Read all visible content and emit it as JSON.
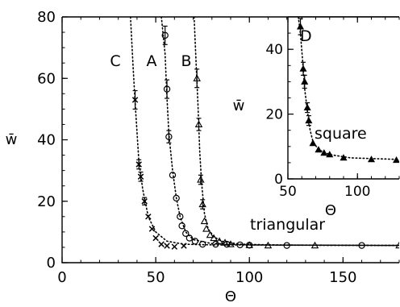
{
  "chart_data": [
    {
      "type": "scatter",
      "xlabel": "Θ",
      "ylabel": "w̄",
      "xlim": [
        0,
        180
      ],
      "ylim": [
        0,
        80
      ],
      "xticks": [
        0,
        50,
        100,
        150
      ],
      "yticks": [
        0,
        20,
        40,
        60,
        80
      ],
      "grid": false,
      "legend": "none",
      "annotations": [
        {
          "text": "C",
          "x": 11,
          "y": 62
        },
        {
          "text": "A",
          "x": 51,
          "y": 62
        },
        {
          "text": "B",
          "x": 68,
          "y": 62
        },
        {
          "text": "triangular",
          "x": 111,
          "y": 13
        }
      ],
      "series": [
        {
          "marker": "cross",
          "points": [
            [
              39,
              53
            ],
            [
              41,
              32
            ],
            [
              42,
              28
            ],
            [
              44,
              20
            ],
            [
              46,
              15
            ],
            [
              48,
              11
            ],
            [
              50,
              8
            ],
            [
              53,
              6
            ],
            [
              56,
              5.5
            ],
            [
              60,
              5.2
            ],
            [
              65,
              5.5
            ]
          ],
          "errors": [
            [
              39,
              3
            ],
            [
              41,
              1.5
            ],
            [
              42,
              1.5
            ],
            [
              44,
              1.2
            ]
          ],
          "curve": [
            [
              36.5,
              80
            ],
            [
              38,
              63
            ],
            [
              39,
              52
            ],
            [
              41,
              33
            ],
            [
              43,
              24
            ],
            [
              46,
              15
            ],
            [
              50,
              10
            ],
            [
              56,
              7
            ],
            [
              65,
              6
            ],
            [
              80,
              5.8
            ],
            [
              180,
              5.6
            ]
          ]
        },
        {
          "marker": "circle",
          "points": [
            [
              55,
              74
            ],
            [
              56,
              56.5
            ],
            [
              57,
              41
            ],
            [
              59,
              28.5
            ],
            [
              61,
              21
            ],
            [
              63,
              15
            ],
            [
              64,
              12
            ],
            [
              66,
              9.5
            ],
            [
              68,
              8
            ],
            [
              71,
              7
            ],
            [
              75,
              6
            ],
            [
              82,
              6
            ],
            [
              88,
              6
            ],
            [
              95,
              5.8
            ],
            [
              100,
              5.7
            ],
            [
              120,
              5.6
            ],
            [
              160,
              5.6
            ]
          ],
          "errors": [
            [
              55,
              3
            ],
            [
              56,
              3
            ],
            [
              57,
              2
            ]
          ],
          "curve": [
            [
              53,
              80
            ],
            [
              55,
              68
            ],
            [
              56,
              54
            ],
            [
              57,
              42
            ],
            [
              59,
              30
            ],
            [
              61,
              21
            ],
            [
              63,
              15
            ],
            [
              66,
              10
            ],
            [
              70,
              7.5
            ],
            [
              80,
              6.2
            ],
            [
              100,
              5.8
            ],
            [
              180,
              5.6
            ]
          ]
        },
        {
          "marker": "triangle",
          "points": [
            [
              72,
              60
            ],
            [
              73,
              45
            ],
            [
              74,
              27
            ],
            [
              75,
              19
            ],
            [
              76,
              13.5
            ],
            [
              77,
              11
            ],
            [
              79,
              9
            ],
            [
              81,
              8
            ],
            [
              84,
              7
            ],
            [
              87,
              6.5
            ],
            [
              90,
              6
            ],
            [
              100,
              5.7
            ],
            [
              110,
              5.6
            ],
            [
              135,
              5.6
            ],
            [
              180,
              5.6
            ]
          ],
          "errors": [
            [
              72,
              3
            ],
            [
              73,
              2
            ],
            [
              74,
              1.5
            ],
            [
              75,
              1.5
            ]
          ],
          "curve": [
            [
              70.5,
              80
            ],
            [
              71.5,
              66
            ],
            [
              72.5,
              52
            ],
            [
              73.5,
              36
            ],
            [
              74.5,
              26
            ],
            [
              76,
              16
            ],
            [
              78,
              11
            ],
            [
              81,
              8.5
            ],
            [
              85,
              7
            ],
            [
              95,
              6
            ],
            [
              120,
              5.7
            ],
            [
              180,
              5.6
            ]
          ]
        }
      ]
    },
    {
      "type": "scatter",
      "xlabel": "Θ",
      "ylabel": "w̄",
      "xlim": [
        50,
        130
      ],
      "ylim": [
        0,
        50
      ],
      "xticks": [
        50,
        100
      ],
      "yticks": [
        0,
        20,
        40
      ],
      "grid": false,
      "legend": "none",
      "annotations": [
        {
          "text": "D",
          "x": 63,
          "y": 44
        },
        {
          "text": "square",
          "x": 98,
          "y": 12
        }
      ],
      "series": [
        {
          "marker": "triangle",
          "points": [
            [
              59,
              47
            ],
            [
              61,
              34
            ],
            [
              62,
              30
            ],
            [
              64,
              22
            ],
            [
              65,
              18
            ],
            [
              68,
              11
            ],
            [
              72,
              9
            ],
            [
              76,
              8
            ],
            [
              80,
              7.5
            ],
            [
              90,
              6.5
            ],
            [
              110,
              6
            ],
            [
              128,
              5.8
            ]
          ],
          "errors": [
            [
              59,
              2.5
            ],
            [
              61,
              2
            ],
            [
              62,
              2
            ],
            [
              64,
              1.5
            ],
            [
              65,
              1.5
            ]
          ],
          "curve": [
            [
              57.5,
              50
            ],
            [
              59,
              45
            ],
            [
              60.5,
              37
            ],
            [
              62,
              28
            ],
            [
              64,
              21
            ],
            [
              66,
              15
            ],
            [
              68,
              11.5
            ],
            [
              72,
              9
            ],
            [
              80,
              7.5
            ],
            [
              95,
              6.5
            ],
            [
              130,
              6
            ]
          ]
        }
      ]
    }
  ]
}
